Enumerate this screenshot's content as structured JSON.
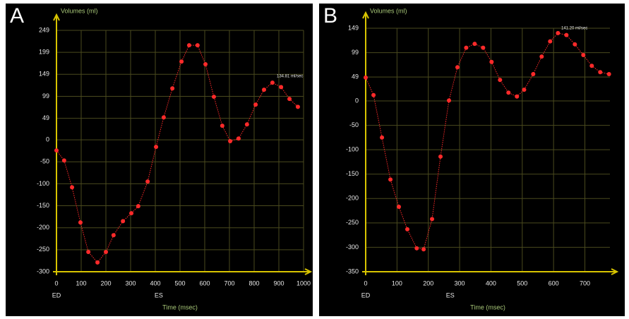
{
  "chart_data": [
    {
      "type": "line",
      "panel": "A",
      "title": "Volumes (ml)",
      "x_label": "Time (msec)",
      "rate_annotation": "134.81 ml/sec",
      "x": [
        0,
        31,
        63,
        97,
        129,
        166,
        200,
        231,
        269,
        303,
        331,
        369,
        403,
        434,
        469,
        506,
        537,
        571,
        603,
        637,
        671,
        703,
        737,
        771,
        806,
        840,
        874,
        909,
        943,
        977
      ],
      "values": [
        -24,
        -47,
        -108,
        -188,
        -255,
        -279,
        -255,
        -217,
        -185,
        -167,
        -151,
        -95,
        -16,
        51,
        117,
        178,
        215,
        215,
        172,
        98,
        32,
        -3,
        3,
        35,
        80,
        114,
        130,
        120,
        93,
        75
      ],
      "color": "#ff2a2a",
      "xlim": [
        0,
        1000
      ],
      "xticks": [
        0,
        100,
        200,
        300,
        400,
        500,
        600,
        700,
        800,
        900,
        1000
      ],
      "ylim": [
        -300,
        249
      ],
      "yticks": [
        249,
        199,
        149,
        99,
        49,
        0,
        -50,
        -100,
        -150,
        -200,
        -250,
        -300
      ],
      "markers": [
        {
          "label": "ED",
          "x": 0
        },
        {
          "label": "ES",
          "x": 414
        }
      ],
      "grid": true
    },
    {
      "type": "line",
      "panel": "B",
      "title": "Volumes (ml)",
      "x_label": "Time (msec)",
      "rate_annotation": "141.20 ml/sec",
      "x": [
        0,
        25,
        52,
        79,
        106,
        133,
        163,
        185,
        212,
        239,
        266,
        293,
        321,
        348,
        375,
        402,
        429,
        456,
        483,
        506,
        535,
        562,
        589,
        614,
        641,
        668,
        695,
        722,
        749,
        777
      ],
      "values": [
        48,
        12,
        -75,
        -161,
        -217,
        -263,
        -302,
        -304,
        -242,
        -114,
        1,
        69,
        109,
        117,
        109,
        80,
        43,
        17,
        9,
        23,
        55,
        91,
        122,
        139,
        135,
        116,
        94,
        72,
        59,
        55
      ],
      "color": "#ff2a2a",
      "xlim": [
        0,
        780
      ],
      "xticks": [
        0,
        100,
        200,
        300,
        400,
        500,
        600,
        700
      ],
      "ylim": [
        -350,
        149
      ],
      "yticks": [
        149,
        99,
        49,
        0,
        -50,
        -100,
        -150,
        -200,
        -250,
        -300,
        -350
      ],
      "markers": [
        {
          "label": "ED",
          "x": 0
        },
        {
          "label": "ES",
          "x": 270
        }
      ],
      "grid": true
    }
  ]
}
